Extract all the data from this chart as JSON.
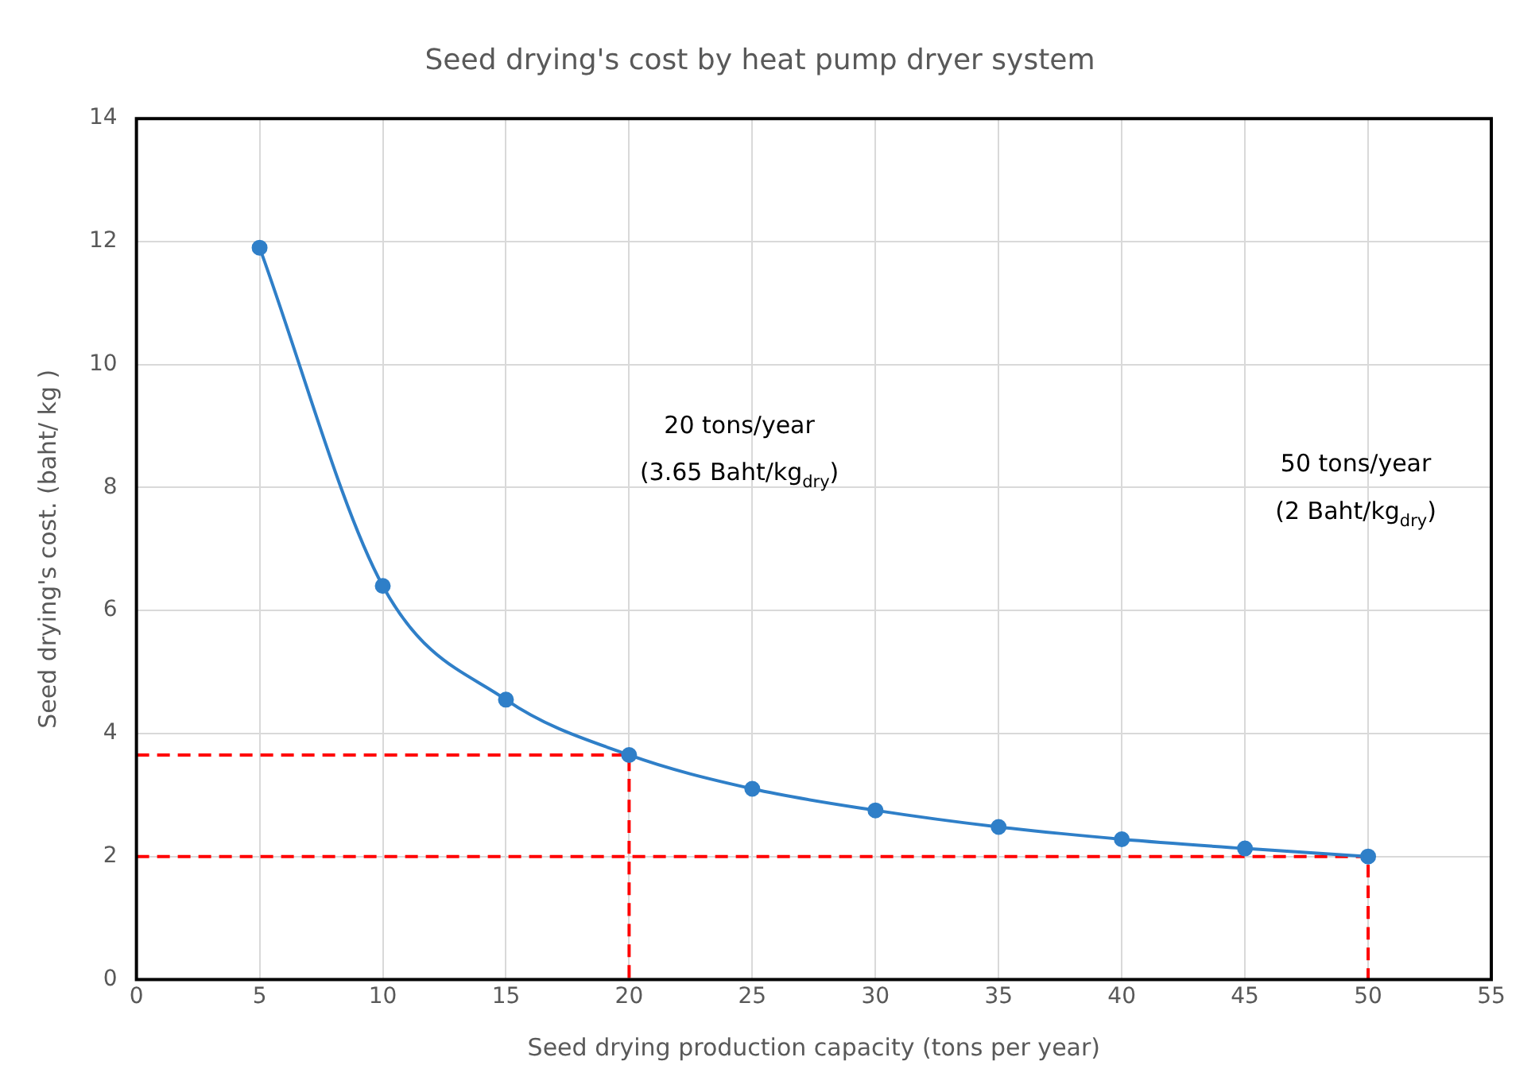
{
  "chart_data": {
    "type": "line",
    "title": "Seed drying's cost by heat pump dryer system",
    "xlabel": "Seed drying production capacity (tons per year)",
    "ylabel": "Seed drying's cost. (baht/ kg )",
    "x": [
      5,
      10,
      15,
      20,
      25,
      30,
      35,
      40,
      45,
      50
    ],
    "series": [
      {
        "color": "#2f7fc8",
        "values": [
          11.9,
          6.4,
          4.55,
          3.65,
          3.1,
          2.75,
          2.48,
          2.28,
          2.13,
          2.0
        ]
      },
      {
        "type": "line",
        "color": "#ff0000",
        "x": [
          0,
          20,
          20
        ],
        "values": [
          3.65,
          3.65,
          0
        ],
        "marker": "none",
        "line_style": "dashed"
      },
      {
        "type": "line",
        "color": "#ff0000",
        "x": [
          0,
          50,
          50
        ],
        "values": [
          2.0,
          2.0,
          0
        ],
        "marker": "none",
        "line_style": "dashed"
      }
    ],
    "xlim": [
      0,
      55
    ],
    "xticks": [
      0,
      5,
      10,
      15,
      20,
      25,
      30,
      35,
      40,
      45,
      50,
      55
    ],
    "ylim": [
      0,
      14
    ],
    "yticks": [
      0,
      2,
      4,
      6,
      8,
      10,
      12,
      14
    ],
    "grid": true,
    "legend": false,
    "marker": "circle",
    "line_style": "solid",
    "annotations": [
      "20 tons/year",
      "(3.65 Baht/kg$_{dry}$)",
      "50 tons/year",
      "(2 Baht/kg$_{dry}$)"
    ]
  }
}
